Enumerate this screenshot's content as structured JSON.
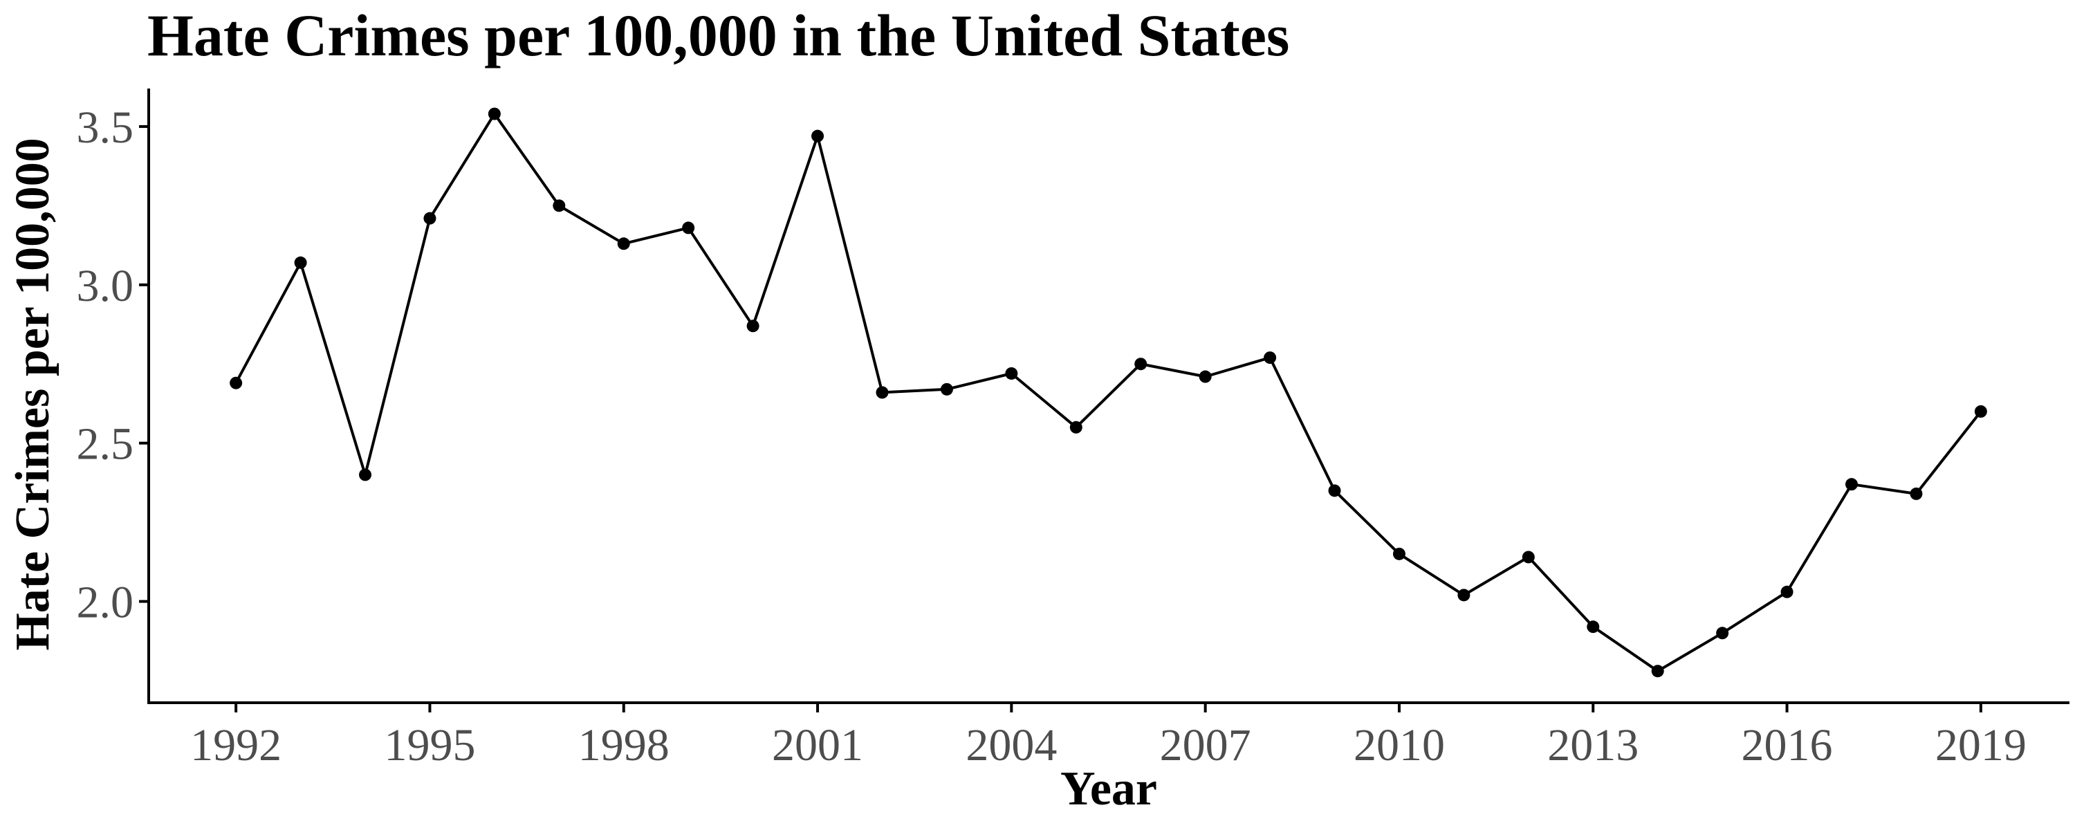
{
  "chart_data": {
    "type": "line",
    "title": "Hate Crimes per 100,000 in the United States",
    "xlabel": "Year",
    "ylabel": "Hate Crimes per 100,000",
    "x": [
      1992,
      1993,
      1994,
      1995,
      1996,
      1997,
      1998,
      1999,
      2000,
      2001,
      2002,
      2003,
      2004,
      2005,
      2006,
      2007,
      2008,
      2009,
      2010,
      2011,
      2012,
      2013,
      2014,
      2015,
      2016,
      2017,
      2018,
      2019
    ],
    "values": [
      2.69,
      3.07,
      2.4,
      3.21,
      3.54,
      3.25,
      3.13,
      3.18,
      2.87,
      3.47,
      2.66,
      2.67,
      2.72,
      2.55,
      2.75,
      2.71,
      2.77,
      2.35,
      2.15,
      2.02,
      2.14,
      1.92,
      1.78,
      1.9,
      2.03,
      2.37,
      2.34,
      2.6
    ],
    "x_ticks": [
      "1992",
      "1995",
      "1998",
      "2001",
      "2004",
      "2007",
      "2010",
      "2013",
      "2016",
      "2019"
    ],
    "x_tick_values": [
      1992,
      1995,
      1998,
      2001,
      2004,
      2007,
      2010,
      2013,
      2016,
      2019
    ],
    "y_ticks": [
      "2.0",
      "2.5",
      "3.0",
      "3.5"
    ],
    "y_tick_values": [
      2.0,
      2.5,
      3.0,
      3.5
    ],
    "xlim": [
      1990.65,
      2020.35
    ],
    "ylim": [
      1.68,
      3.62
    ],
    "grid": false,
    "legend": "none",
    "line_color": "#000000",
    "tick_color": "#4d4d4d"
  }
}
